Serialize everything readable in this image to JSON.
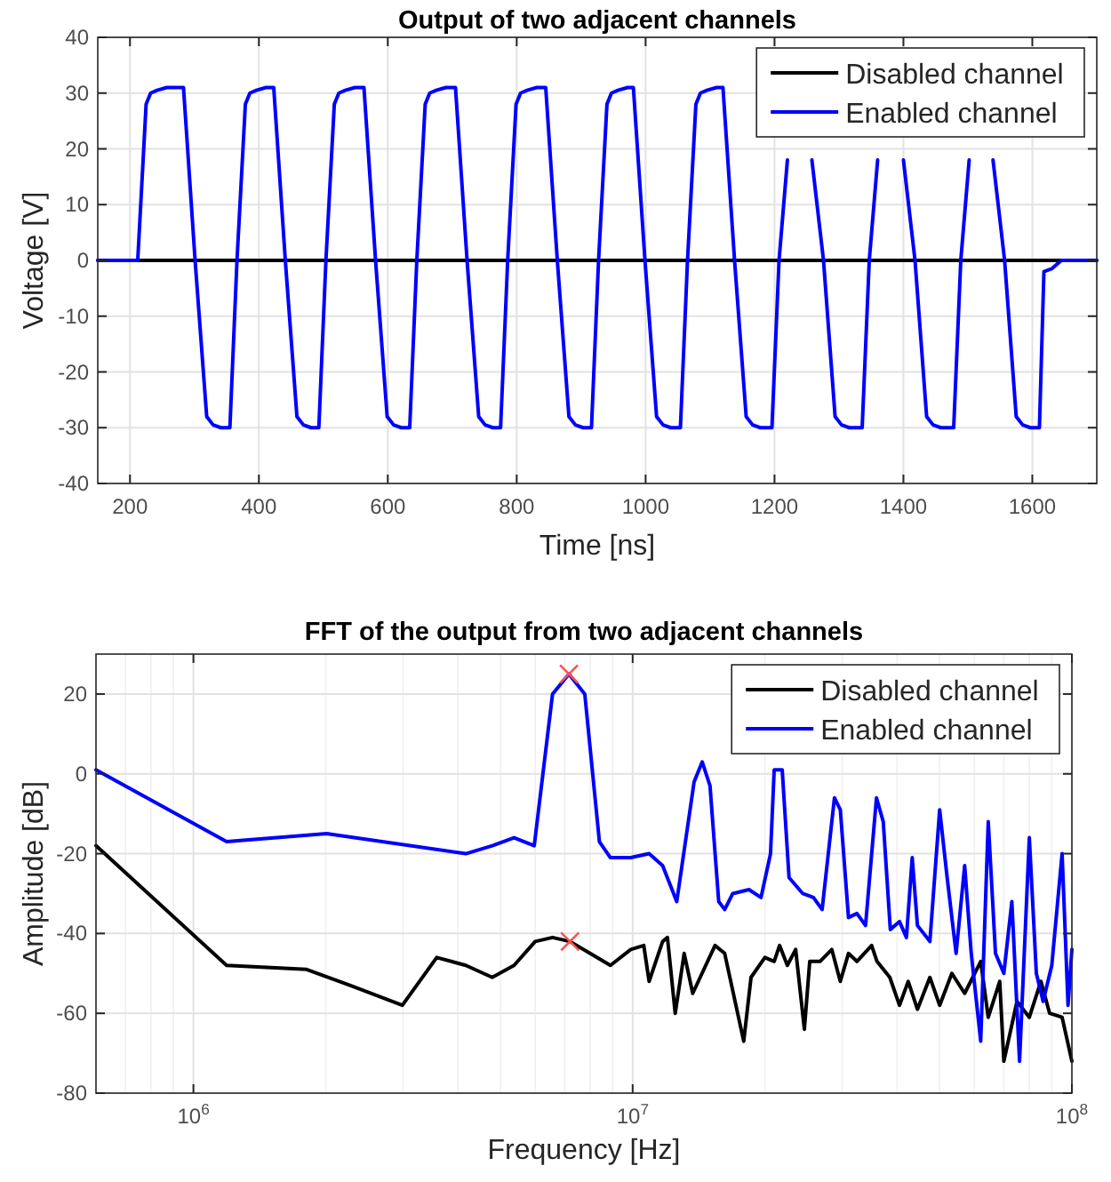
{
  "chart_data": [
    {
      "type": "line",
      "title": "Output of two adjacent channels",
      "xlabel": "Time [ns]",
      "ylabel": "Voltage [V]",
      "xlim": [
        150,
        1700
      ],
      "xticks": [
        200,
        400,
        600,
        800,
        1000,
        1200,
        1400,
        1600
      ],
      "ylim": [
        -40,
        40
      ],
      "yticks": [
        -40,
        -30,
        -20,
        -10,
        0,
        10,
        20,
        30,
        40
      ],
      "grid": true,
      "legend": "top right",
      "series": [
        {
          "name": "Disabled channel",
          "color": "#000000",
          "x": [
            150,
            1700
          ],
          "values": [
            0,
            0
          ]
        },
        {
          "name": "Enabled channel",
          "color": "#0000ff",
          "x": [
            150,
            212,
            225,
            232,
            242,
            257,
            283,
            301,
            319,
            329,
            341,
            355,
            366,
            379,
            386,
            396,
            411,
            423,
            441,
            459,
            469,
            481,
            493,
            504,
            517,
            524,
            534,
            549,
            563,
            581,
            599,
            609,
            621,
            634,
            645,
            658,
            665,
            675,
            690,
            705,
            723,
            741,
            751,
            763,
            775,
            786,
            799,
            806,
            816,
            831,
            845,
            863,
            881,
            891,
            903,
            916,
            927,
            940,
            947,
            957,
            972,
            981,
            999,
            1017,
            1027,
            1039,
            1054,
            1065,
            1078,
            1085,
            1095,
            1110,
            1120,
            1138,
            1156,
            1166,
            1178,
            1196,
            1207,
            1220,
            1227,
            1237,
            1252,
            1258,
            1276,
            1294,
            1304,
            1316,
            1336,
            1347,
            1360,
            1367,
            1377,
            1392,
            1400,
            1418,
            1436,
            1446,
            1458,
            1478,
            1489,
            1502,
            1509,
            1519,
            1534,
            1539,
            1557,
            1575,
            1585,
            1597,
            1611,
            1618,
            1630,
            1645,
            1700
          ],
          "values": [
            0,
            0,
            28,
            30,
            30.5,
            31,
            31,
            0,
            -28,
            -29.5,
            -30,
            -30,
            0,
            28,
            30,
            30.5,
            31,
            31,
            0,
            -28,
            -29.5,
            -30,
            -30,
            0,
            28,
            30,
            30.5,
            31,
            31,
            0,
            -28,
            -29.5,
            -30,
            -30,
            0,
            28,
            30,
            30.5,
            31,
            31,
            0,
            -28,
            -29.5,
            -30,
            -30,
            0,
            28,
            30,
            30.5,
            31,
            31,
            0,
            -28,
            -29.5,
            -30,
            -30,
            0,
            28,
            30,
            30.5,
            31,
            31,
            0,
            -28,
            -29.5,
            -30,
            -30,
            0,
            28,
            30,
            30.5,
            31,
            31,
            0,
            -28,
            -29.5,
            -30,
            -30,
            0,
            18,
            null,
            null,
            null,
            18,
            0,
            -28,
            -29.5,
            -30,
            -30,
            0,
            18,
            null,
            null,
            null,
            18,
            0,
            -28,
            -29.5,
            -30,
            -30,
            0,
            18,
            null,
            null,
            null,
            18,
            0,
            -28,
            -29.5,
            -30,
            -30,
            -2,
            -1.5,
            0,
            0
          ]
        }
      ]
    },
    {
      "type": "line",
      "title": "FFT of the output from two adjacent channels",
      "xlabel": "Frequency [Hz]",
      "ylabel": "Amplitude [dB]",
      "log": "x",
      "xlim": [
        600000,
        100000000
      ],
      "xticks": [
        {
          "value": 1000000,
          "label": "10$^{6}$"
        },
        {
          "value": 10000000,
          "label": "10$^{7}$"
        },
        {
          "value": 100000000,
          "label": "10$^{8}$"
        }
      ],
      "ylim": [
        -80,
        30
      ],
      "yticks": [
        -80,
        -60,
        -40,
        -20,
        0,
        20
      ],
      "grid": true,
      "legend": "top right",
      "series": [
        {
          "name": "Disabled channel",
          "color": "#000000",
          "x": [
            600000,
            1190000,
            1810000,
            2270000,
            2990000,
            3580000,
            4170000,
            4790000,
            5370000,
            6000000,
            6570000,
            7200000,
            8000000,
            8900000,
            9900000,
            10600000,
            10900000,
            11700000,
            12000000,
            12500000,
            13100000,
            13700000,
            15400000,
            16200000,
            17900000,
            18600000,
            20000000,
            21000000,
            21600000,
            22500000,
            23500000,
            24600000,
            25300000,
            26700000,
            28400000,
            29700000,
            31000000,
            32400000,
            35000000,
            36000000,
            38500000,
            40500000,
            42400000,
            44500000,
            47500000,
            50000000,
            53300000,
            57000000,
            62000000,
            64500000,
            68500000,
            70000000,
            75000000,
            80000000,
            85000000,
            89000000,
            95000000,
            100000000
          ],
          "values": [
            -18,
            -48,
            -49,
            -53,
            -58,
            -46,
            -48,
            -51,
            -48,
            -42,
            -41,
            -42,
            -45,
            -48,
            -44,
            -43,
            -52,
            -42,
            -41,
            -60,
            -45,
            -55,
            -43,
            -45,
            -67,
            -51,
            -46,
            -47,
            -43,
            -48,
            -44,
            -64,
            -47,
            -47,
            -44,
            -52,
            -45,
            -47,
            -43,
            -47,
            -51,
            -58,
            -52,
            -59,
            -51,
            -58,
            -50,
            -55,
            -47,
            -61,
            -52,
            -72,
            -57,
            -61,
            -52,
            -60,
            -61,
            -72
          ]
        },
        {
          "name": "Enabled channel",
          "color": "#0000ff",
          "x": [
            600000,
            1190000,
            2010000,
            4170000,
            4790000,
            5370000,
            5970000,
            6570000,
            7160000,
            7780000,
            8400000,
            8900000,
            9900000,
            10900000,
            11700000,
            12600000,
            13800000,
            14400000,
            15000000,
            15700000,
            16200000,
            16900000,
            18400000,
            19600000,
            20600000,
            21000000,
            21900000,
            22700000,
            24400000,
            25800000,
            27000000,
            28800000,
            29700000,
            31000000,
            32400000,
            33900000,
            35900000,
            37200000,
            38600000,
            40500000,
            42000000,
            43300000,
            44500000,
            47500000,
            50000000,
            52000000,
            54500000,
            57000000,
            59000000,
            62000000,
            64500000,
            67000000,
            70000000,
            73000000,
            76000000,
            80000000,
            83000000,
            86000000,
            90000000,
            95000000,
            98000000,
            100000000
          ],
          "values": [
            1,
            -17,
            -15,
            -20,
            -18,
            -16,
            -18,
            20,
            25,
            20,
            -17,
            -21,
            -21,
            -20,
            -23,
            -32,
            -2,
            3,
            -3,
            -32,
            -34,
            -30,
            -29,
            -31,
            -20,
            1,
            1,
            -26,
            -30,
            -31,
            -34,
            -6,
            -9,
            -36,
            -35,
            -38,
            -6,
            -12,
            -39,
            -37,
            -41,
            -21,
            -38,
            -42,
            -9,
            -26,
            -45,
            -23,
            -45,
            -67,
            -12,
            -45,
            -50,
            -32,
            -72,
            -16,
            -50,
            -57,
            -48,
            -20,
            -58,
            -44
          ]
        },
        {
          "type": "scatter",
          "color": "#ff5050",
          "marker": "cross",
          "x": [
            7160000,
            7200000
          ],
          "values": [
            25,
            -42
          ]
        }
      ]
    }
  ]
}
